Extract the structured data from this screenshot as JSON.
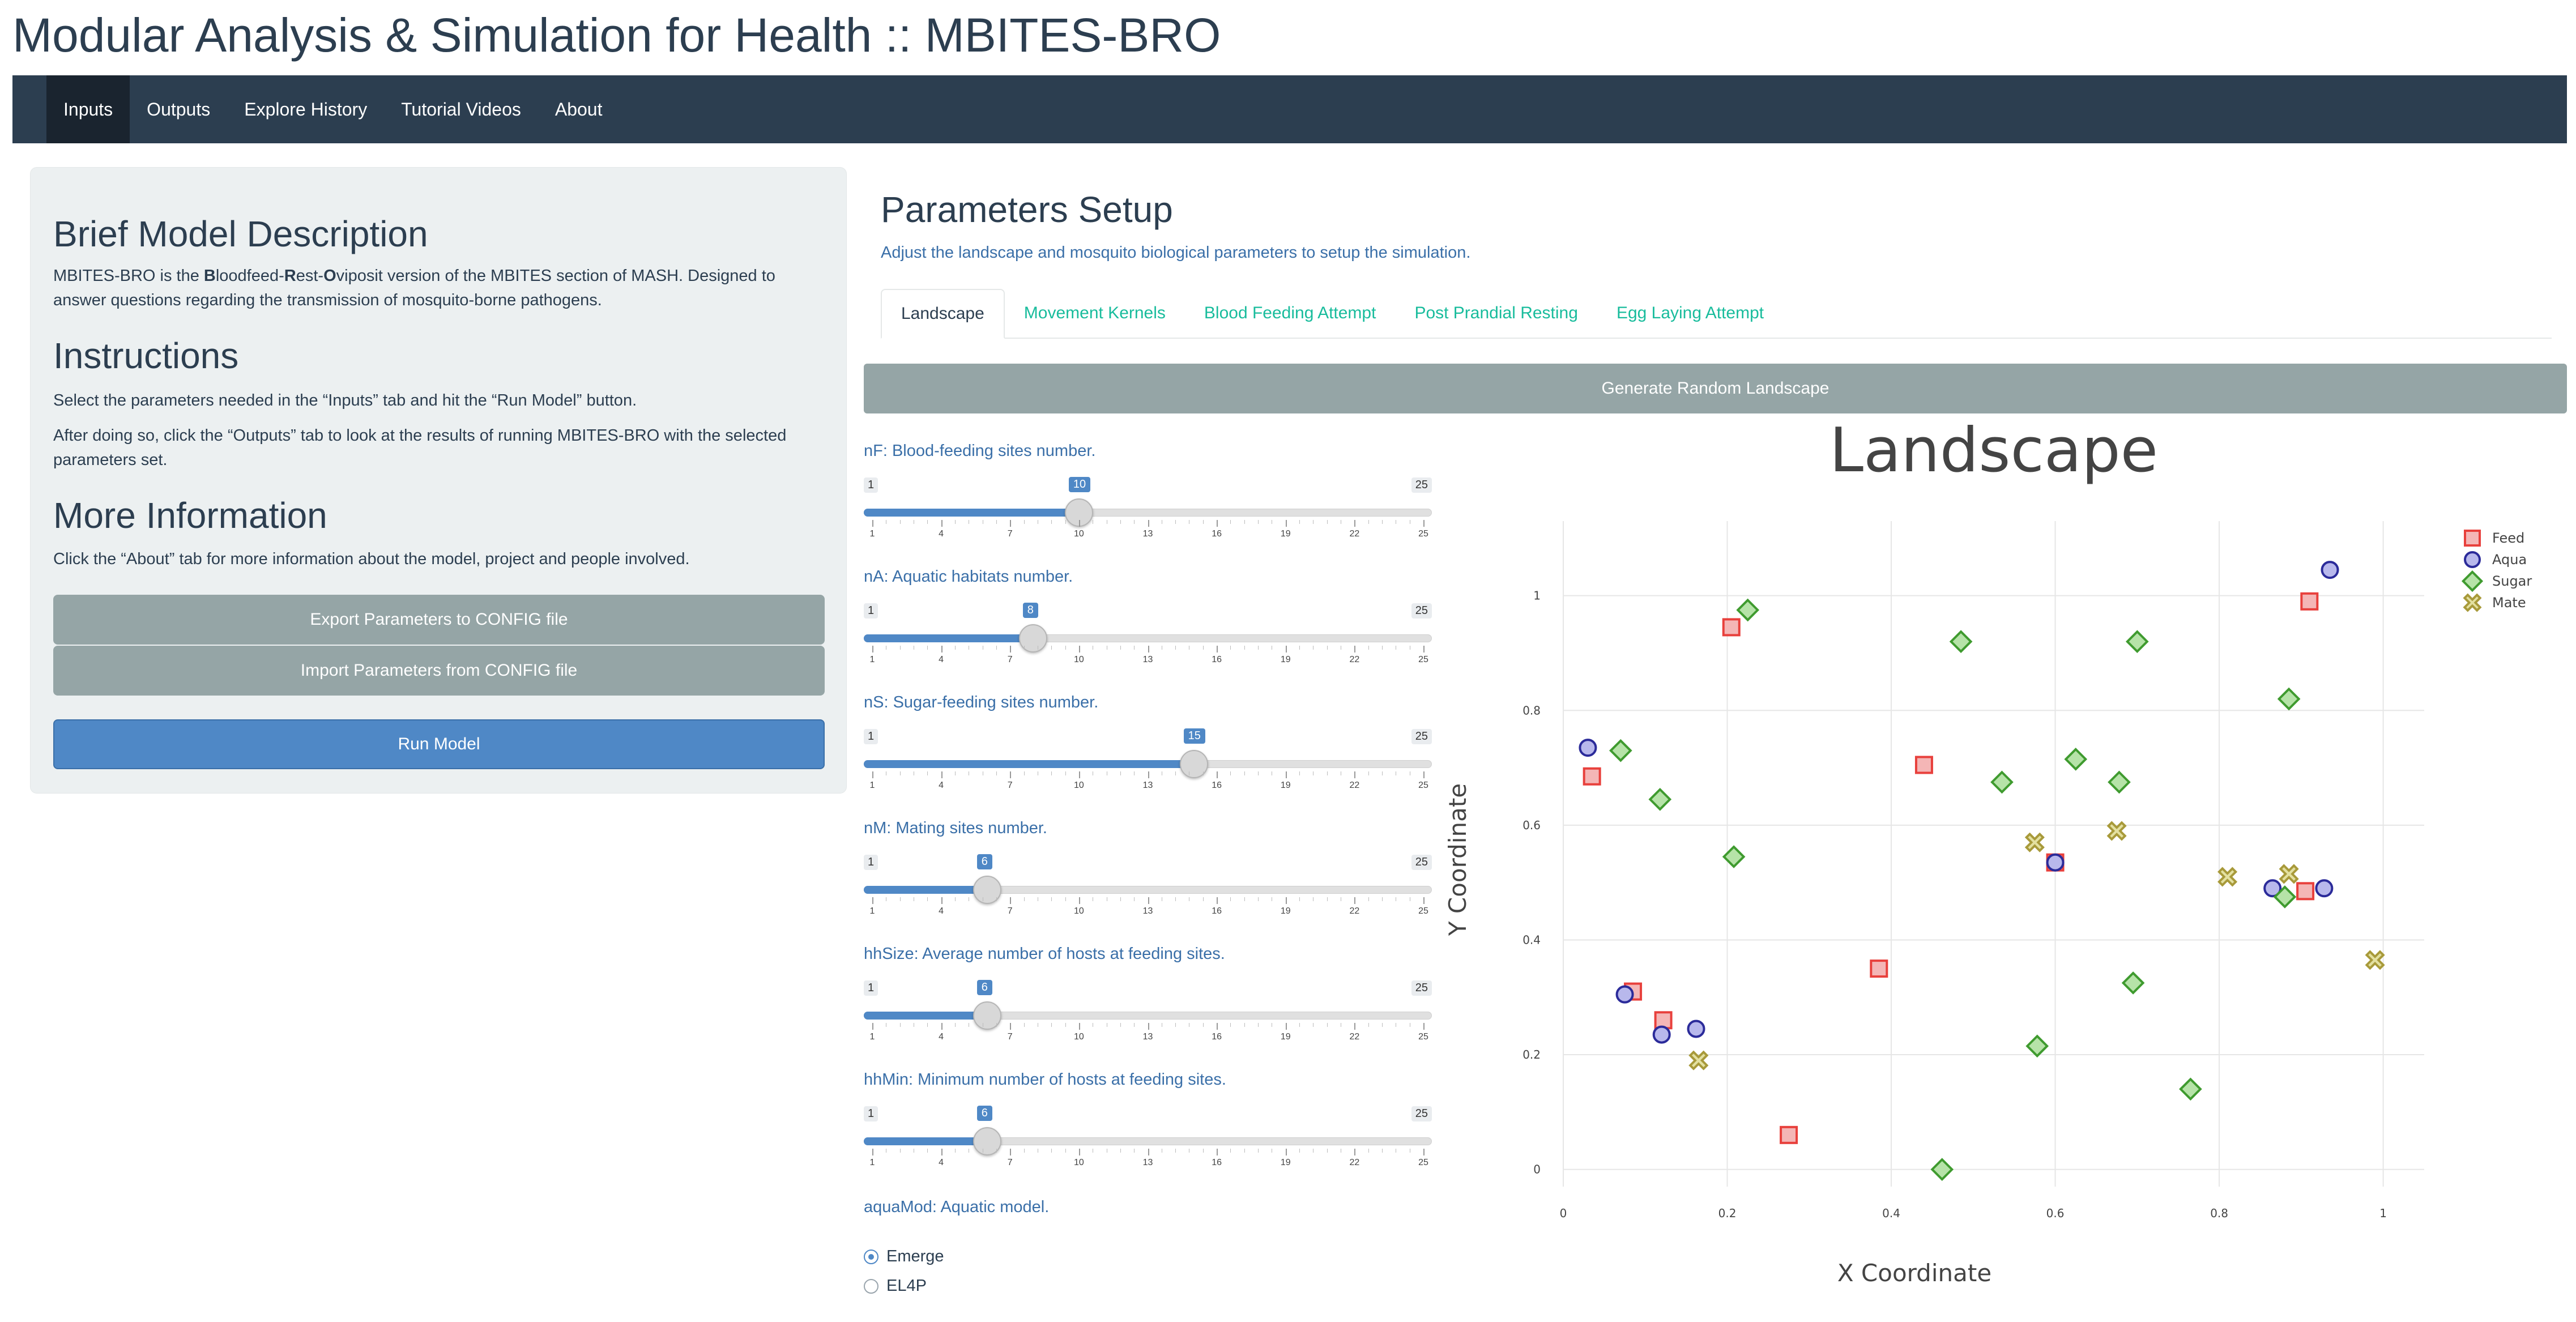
{
  "app": {
    "title": "Modular Analysis & Simulation for Health :: MBITES-BRO"
  },
  "navbar": {
    "items": [
      {
        "label": "Inputs",
        "active": true
      },
      {
        "label": "Outputs"
      },
      {
        "label": "Explore History"
      },
      {
        "label": "Tutorial Videos"
      },
      {
        "label": "About"
      }
    ]
  },
  "sidebar": {
    "description_heading": "Brief Model Description",
    "description": {
      "pre": "MBITES-BRO is the ",
      "b1": "B",
      "t1": "loodfeed-",
      "b2": "R",
      "t2": "est-",
      "b3": "O",
      "t3": "viposit version of the MBITES section of MASH. Designed to answer questions regarding the transmission of mosquito-borne pathogens."
    },
    "instructions_heading": "Instructions",
    "instructions_1": "Select the parameters needed in the “Inputs” tab and hit the “Run Model” button.",
    "instructions_2": "After doing so, click the “Outputs” tab to look at the results of running MBITES-BRO with the selected parameters set.",
    "more_heading": "More Information",
    "more_text": "Click the “About” tab for more information about the model, project and people involved.",
    "export_button": "Export Parameters to CONFIG file",
    "import_button": "Import Parameters from CONFIG file",
    "run_button": "Run Model"
  },
  "main": {
    "heading": "Parameters Setup",
    "subheading": "Adjust the landscape and mosquito biological parameters to setup the simulation.",
    "tabs": [
      {
        "label": "Landscape",
        "active": true
      },
      {
        "label": "Movement Kernels"
      },
      {
        "label": "Blood Feeding Attempt"
      },
      {
        "label": "Post Prandial Resting"
      },
      {
        "label": "Egg Laying Attempt"
      }
    ],
    "generate_button": "Generate Random Landscape",
    "slider_ticks": [
      "1",
      "4",
      "7",
      "10",
      "13",
      "16",
      "19",
      "22",
      "25"
    ],
    "sliders": [
      {
        "label": "nF: Blood-feeding sites number.",
        "min": "1",
        "max": "25",
        "value": "10"
      },
      {
        "label": "nA: Aquatic habitats number.",
        "min": "1",
        "max": "25",
        "value": "8"
      },
      {
        "label": "nS: Sugar-feeding sites number.",
        "min": "1",
        "max": "25",
        "value": "15"
      },
      {
        "label": "nM: Mating sites number.",
        "min": "1",
        "max": "25",
        "value": "6"
      },
      {
        "label": "hhSize: Average number of hosts at feeding sites.",
        "min": "1",
        "max": "25",
        "value": "6"
      },
      {
        "label": "hhMin: Minimum number of hosts at feeding sites.",
        "min": "1",
        "max": "25",
        "value": "6"
      }
    ],
    "aquamod": {
      "label": "aquaMod: Aquatic model.",
      "options": [
        {
          "label": "Emerge",
          "checked": true
        },
        {
          "label": "EL4P",
          "checked": false
        }
      ]
    }
  },
  "chart_data": {
    "type": "scatter",
    "title": "Landscape",
    "xlabel": "X Coordinate",
    "ylabel": "Y Coordinate",
    "xlim": [
      0,
      1.05
    ],
    "ylim": [
      -0.03,
      1.13
    ],
    "xticks": [
      "0",
      "0.2",
      "0.4",
      "0.6",
      "0.8",
      "1"
    ],
    "yticks": [
      "0",
      "0.2",
      "0.4",
      "0.6",
      "0.8",
      "1"
    ],
    "grid": true,
    "legend_position": "top-right",
    "series": [
      {
        "name": "Feed",
        "marker": "square",
        "fill": "#f4b6b6",
        "stroke": "#e8403c",
        "points": [
          [
            0.205,
            0.945
          ],
          [
            0.035,
            0.685
          ],
          [
            0.085,
            0.31
          ],
          [
            0.122,
            0.26
          ],
          [
            0.44,
            0.705
          ],
          [
            0.385,
            0.35
          ],
          [
            0.6,
            0.535
          ],
          [
            0.91,
            0.99
          ],
          [
            0.905,
            0.485
          ],
          [
            0.275,
            0.06
          ]
        ]
      },
      {
        "name": "Aqua",
        "marker": "circle",
        "fill": "#b8b8ec",
        "stroke": "#2b2b9a",
        "points": [
          [
            0.03,
            0.735
          ],
          [
            0.075,
            0.305
          ],
          [
            0.12,
            0.235
          ],
          [
            0.162,
            0.245
          ],
          [
            0.6,
            0.535
          ],
          [
            0.865,
            0.49
          ],
          [
            0.928,
            0.49
          ],
          [
            0.935,
            1.045
          ]
        ]
      },
      {
        "name": "Sugar",
        "marker": "diamond",
        "fill": "#b6e3a8",
        "stroke": "#3f9b2f",
        "points": [
          [
            0.225,
            0.975
          ],
          [
            0.07,
            0.73
          ],
          [
            0.118,
            0.645
          ],
          [
            0.208,
            0.545
          ],
          [
            0.485,
            0.92
          ],
          [
            0.535,
            0.675
          ],
          [
            0.625,
            0.715
          ],
          [
            0.678,
            0.675
          ],
          [
            0.7,
            0.92
          ],
          [
            0.885,
            0.82
          ],
          [
            0.88,
            0.475
          ],
          [
            0.695,
            0.325
          ],
          [
            0.578,
            0.215
          ],
          [
            0.765,
            0.14
          ],
          [
            0.462,
            0.0
          ]
        ]
      },
      {
        "name": "Mate",
        "marker": "x",
        "fill": "#e3e0a0",
        "stroke": "#a89a3a",
        "points": [
          [
            0.165,
            0.19
          ],
          [
            0.575,
            0.57
          ],
          [
            0.675,
            0.59
          ],
          [
            0.81,
            0.51
          ],
          [
            0.885,
            0.515
          ],
          [
            0.99,
            0.365
          ]
        ]
      }
    ]
  }
}
